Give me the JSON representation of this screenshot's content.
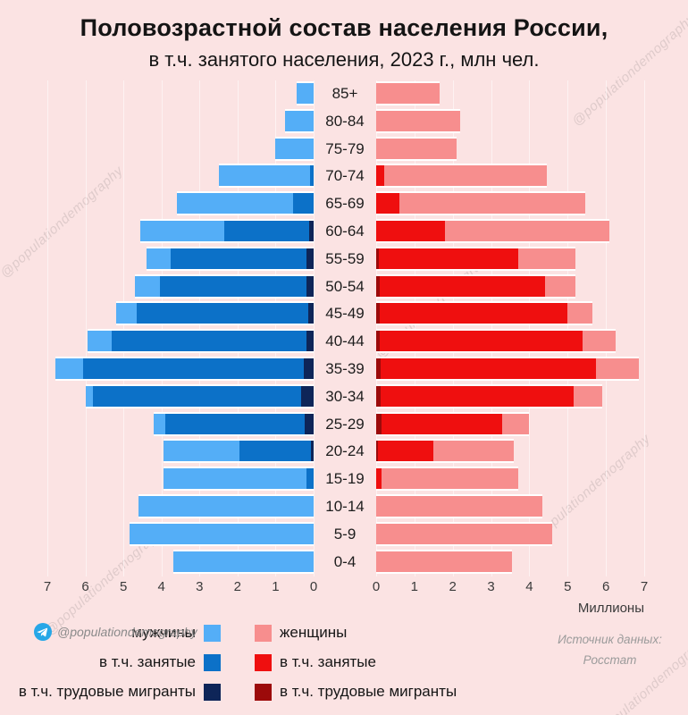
{
  "title": {
    "line1": "Половозрастной состав населения России,",
    "line2": "в т.ч. занятого населения, 2023 г., млн чел."
  },
  "colors": {
    "background": "#fbe3e3",
    "men_total": "#54aef7",
    "men_employed": "#0c71c8",
    "men_migrants": "#0e2558",
    "women_total": "#f78e8e",
    "women_employed": "#ef0f0f",
    "women_migrants": "#9c0a0a",
    "bar_separator": "#ffffff",
    "telegram_blue": "#27a7e7"
  },
  "chart_data": {
    "type": "bar",
    "subtype": "population-pyramid",
    "title": "Половозрастной состав населения России, в т.ч. занятого населения, 2023 г., млн чел.",
    "unit": "млн чел.",
    "xlim": [
      0,
      7
    ],
    "grid": true,
    "age_groups": [
      "85+",
      "80-84",
      "75-79",
      "70-74",
      "65-69",
      "60-64",
      "55-59",
      "50-54",
      "45-49",
      "40-44",
      "35-39",
      "30-34",
      "25-29",
      "20-24",
      "15-19",
      "10-14",
      "5-9",
      "0-4"
    ],
    "men": {
      "total": [
        0.45,
        0.75,
        1.0,
        2.5,
        3.6,
        4.55,
        4.4,
        4.7,
        5.2,
        5.95,
        6.8,
        6.0,
        4.2,
        3.95,
        3.95,
        4.6,
        4.85,
        3.7
      ],
      "employed": [
        0,
        0,
        0,
        0.1,
        0.55,
        2.35,
        3.75,
        4.05,
        4.65,
        5.3,
        6.05,
        5.8,
        3.9,
        1.95,
        0.2,
        0,
        0,
        0
      ],
      "migrants": [
        0,
        0,
        0,
        0,
        0,
        0.12,
        0.18,
        0.2,
        0.15,
        0.2,
        0.27,
        0.32,
        0.24,
        0.07,
        0,
        0,
        0,
        0
      ]
    },
    "women": {
      "total": [
        1.65,
        2.2,
        2.1,
        4.45,
        5.45,
        6.1,
        5.2,
        5.2,
        5.65,
        6.25,
        6.85,
        5.9,
        4.0,
        3.6,
        3.7,
        4.35,
        4.6,
        3.55
      ],
      "employed": [
        0,
        0,
        0,
        0.2,
        0.6,
        1.8,
        3.7,
        4.4,
        5.0,
        5.4,
        5.75,
        5.15,
        3.3,
        1.5,
        0.15,
        0,
        0,
        0
      ],
      "migrants": [
        0,
        0,
        0,
        0,
        0,
        0,
        0.08,
        0.1,
        0.1,
        0.1,
        0.12,
        0.12,
        0.14,
        0.05,
        0,
        0,
        0,
        0
      ]
    }
  },
  "axis": {
    "left_ticks": [
      "7",
      "6",
      "5",
      "4",
      "3",
      "2",
      "1",
      "0"
    ],
    "right_ticks": [
      "0",
      "1",
      "2",
      "3",
      "4",
      "5",
      "6",
      "7"
    ],
    "unit_label": "Миллионы"
  },
  "legend": {
    "left": [
      {
        "label": "мужчины",
        "color": "#54aef7"
      },
      {
        "label": "в т.ч. занятые",
        "color": "#0c71c8"
      },
      {
        "label": "в т.ч. трудовые мигранты",
        "color": "#0e2558"
      }
    ],
    "right": [
      {
        "label": "женщины",
        "color": "#f78e8e"
      },
      {
        "label": "в т.ч. занятые",
        "color": "#ef0f0f"
      },
      {
        "label": "в т.ч. трудовые мигранты",
        "color": "#9c0a0a"
      }
    ]
  },
  "footer": {
    "handle": "@populationdemography",
    "source_line1": "Источник данных:",
    "source_line2": "Росстат"
  },
  "watermark": {
    "text": "@populationdemography"
  }
}
